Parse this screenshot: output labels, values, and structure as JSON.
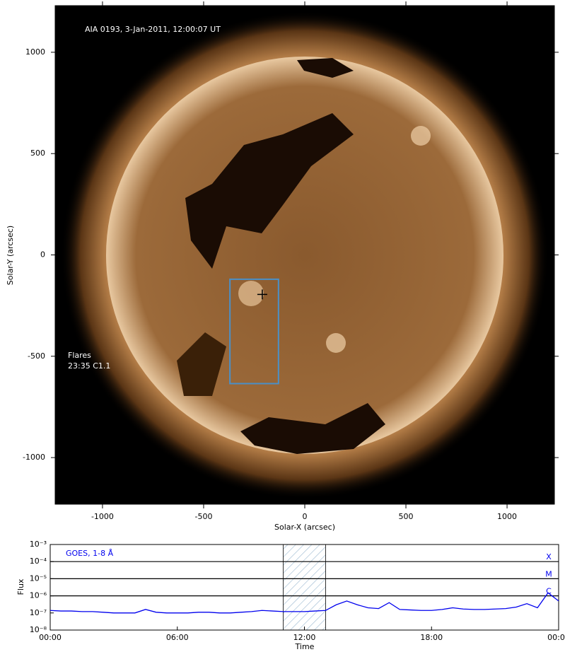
{
  "chart_data": [
    {
      "type": "image",
      "title": "AIA 0193, 3-Jan-2011, 12:00:07 UT",
      "xlabel": "Solar-X (arcsec)",
      "ylabel": "Solar-Y (arcsec)",
      "xlim": [
        -1234,
        1234
      ],
      "ylim": [
        -1230,
        1230
      ],
      "xticks": [
        -1000,
        -500,
        0,
        500,
        1000
      ],
      "yticks": [
        -1000,
        -500,
        0,
        500,
        1000
      ],
      "annotations": [
        "Flares",
        "23:35 C1.1"
      ],
      "box": {
        "x": [
          -370,
          -130
        ],
        "y": [
          -635,
          -120
        ],
        "color": "#4a90c8"
      },
      "marker": {
        "x": -210,
        "y": -195
      }
    },
    {
      "type": "line",
      "xlabel": "Time",
      "ylabel": "Flux",
      "log_y": true,
      "xlim": [
        0,
        24
      ],
      "ylim": [
        1e-08,
        0.001
      ],
      "xticks": [
        {
          "value": 0,
          "label": "00:00"
        },
        {
          "value": 6,
          "label": "06:00"
        },
        {
          "value": 12,
          "label": "12:00"
        },
        {
          "value": 18,
          "label": "18:00"
        },
        {
          "value": 24,
          "label": "00:00"
        }
      ],
      "yticks": [
        {
          "value": 1e-08,
          "label": "10⁻⁸"
        },
        {
          "value": 1e-07,
          "label": "10⁻⁷"
        },
        {
          "value": 1e-06,
          "label": "10⁻⁶"
        },
        {
          "value": 1e-05,
          "label": "10⁻⁵"
        },
        {
          "value": 0.0001,
          "label": "10⁻⁴"
        },
        {
          "value": 0.001,
          "label": "10⁻³"
        }
      ],
      "levels": [
        {
          "value": 0.0001,
          "label": "X"
        },
        {
          "value": 1e-05,
          "label": "M"
        },
        {
          "value": 1e-06,
          "label": "C"
        }
      ],
      "highlight": [
        11,
        13
      ],
      "series": [
        {
          "name": "GOES, 1-8 Å",
          "color": "#0000ee",
          "x": [
            0,
            0.5,
            1,
            1.5,
            2,
            2.5,
            3,
            3.5,
            4,
            4.5,
            5,
            5.5,
            6,
            6.5,
            7,
            7.5,
            8,
            8.5,
            9,
            9.5,
            10,
            10.5,
            11,
            11.5,
            12,
            12.5,
            13,
            13.5,
            14,
            14.5,
            15,
            15.5,
            16,
            16.5,
            17,
            17.5,
            18,
            18.5,
            19,
            19.5,
            20,
            20.5,
            21,
            21.5,
            22,
            22.5,
            23,
            23.5,
            24
          ],
          "values": [
            1.4e-07,
            1.3e-07,
            1.3e-07,
            1.2e-07,
            1.2e-07,
            1.1e-07,
            1e-07,
            1e-07,
            1e-07,
            1.6e-07,
            1.1e-07,
            1e-07,
            1e-07,
            1e-07,
            1.1e-07,
            1.1e-07,
            1e-07,
            1e-07,
            1.1e-07,
            1.2e-07,
            1.4e-07,
            1.3e-07,
            1.2e-07,
            1.2e-07,
            1.2e-07,
            1.3e-07,
            1.4e-07,
            3e-07,
            5e-07,
            3e-07,
            2e-07,
            1.8e-07,
            4e-07,
            1.6e-07,
            1.5e-07,
            1.4e-07,
            1.4e-07,
            1.6e-07,
            2e-07,
            1.7e-07,
            1.6e-07,
            1.6e-07,
            1.7e-07,
            1.8e-07,
            2.2e-07,
            3.5e-07,
            2e-07,
            1.5e-06,
            5e-07
          ]
        }
      ]
    }
  ]
}
